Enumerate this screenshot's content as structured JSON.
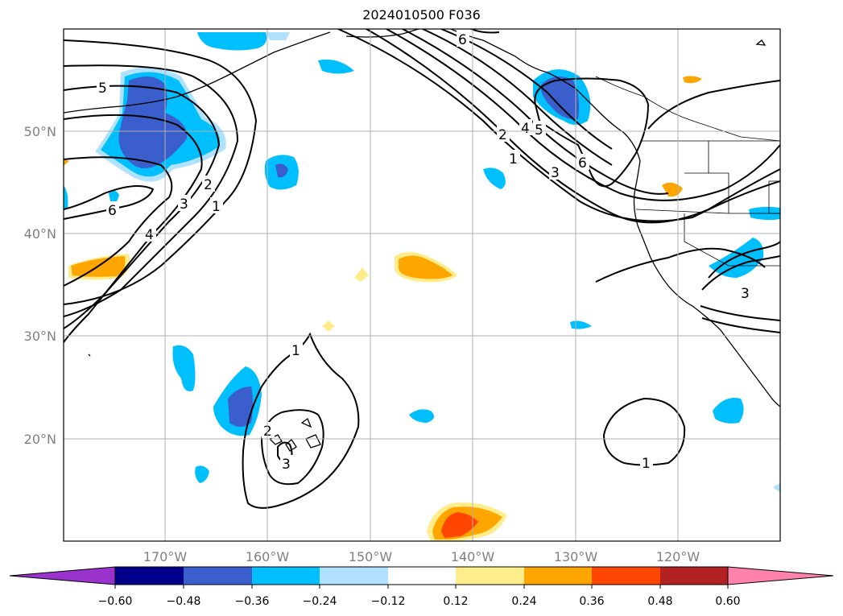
{
  "title": "2024010500 F036",
  "axes": {
    "lon_labels": [
      "170°W",
      "160°W",
      "150°W",
      "140°W",
      "130°W",
      "120°W"
    ],
    "lat_labels": [
      "50°N",
      "40°N",
      "30°N",
      "20°N"
    ],
    "lon_range": [
      -180,
      -110
    ],
    "lat_range": [
      10,
      60
    ],
    "grid": true
  },
  "colorbar": {
    "ticks": [
      "−0.60",
      "−0.48",
      "−0.36",
      "−0.24",
      "−0.12",
      "0.12",
      "0.24",
      "0.36",
      "0.48",
      "0.60"
    ],
    "colors": [
      "#9a32cd",
      "#00008b",
      "#3a5fcd",
      "#00bfff",
      "#b0e2ff",
      "#ffffff",
      "#ffec8b",
      "#ffa500",
      "#ff4500",
      "#b22222",
      "#ff82ab"
    ],
    "extend": "both"
  },
  "contour_labels": [
    {
      "text": "5"
    },
    {
      "text": "6"
    },
    {
      "text": "4"
    },
    {
      "text": "3"
    },
    {
      "text": "2"
    },
    {
      "text": "1"
    },
    {
      "text": "6"
    },
    {
      "text": "2"
    },
    {
      "text": "4"
    },
    {
      "text": "5"
    },
    {
      "text": "1"
    },
    {
      "text": "3"
    },
    {
      "text": "6"
    },
    {
      "text": "1"
    },
    {
      "text": "2"
    },
    {
      "text": "3"
    },
    {
      "text": "1"
    },
    {
      "text": "3"
    }
  ],
  "colors": {
    "positive_low": "#ffec8b",
    "positive_mid": "#ffa500",
    "positive_high": "#ff4500",
    "negative_low": "#b0e2ff",
    "negative_mid": "#00bfff",
    "negative_high": "#3a5fcd"
  }
}
